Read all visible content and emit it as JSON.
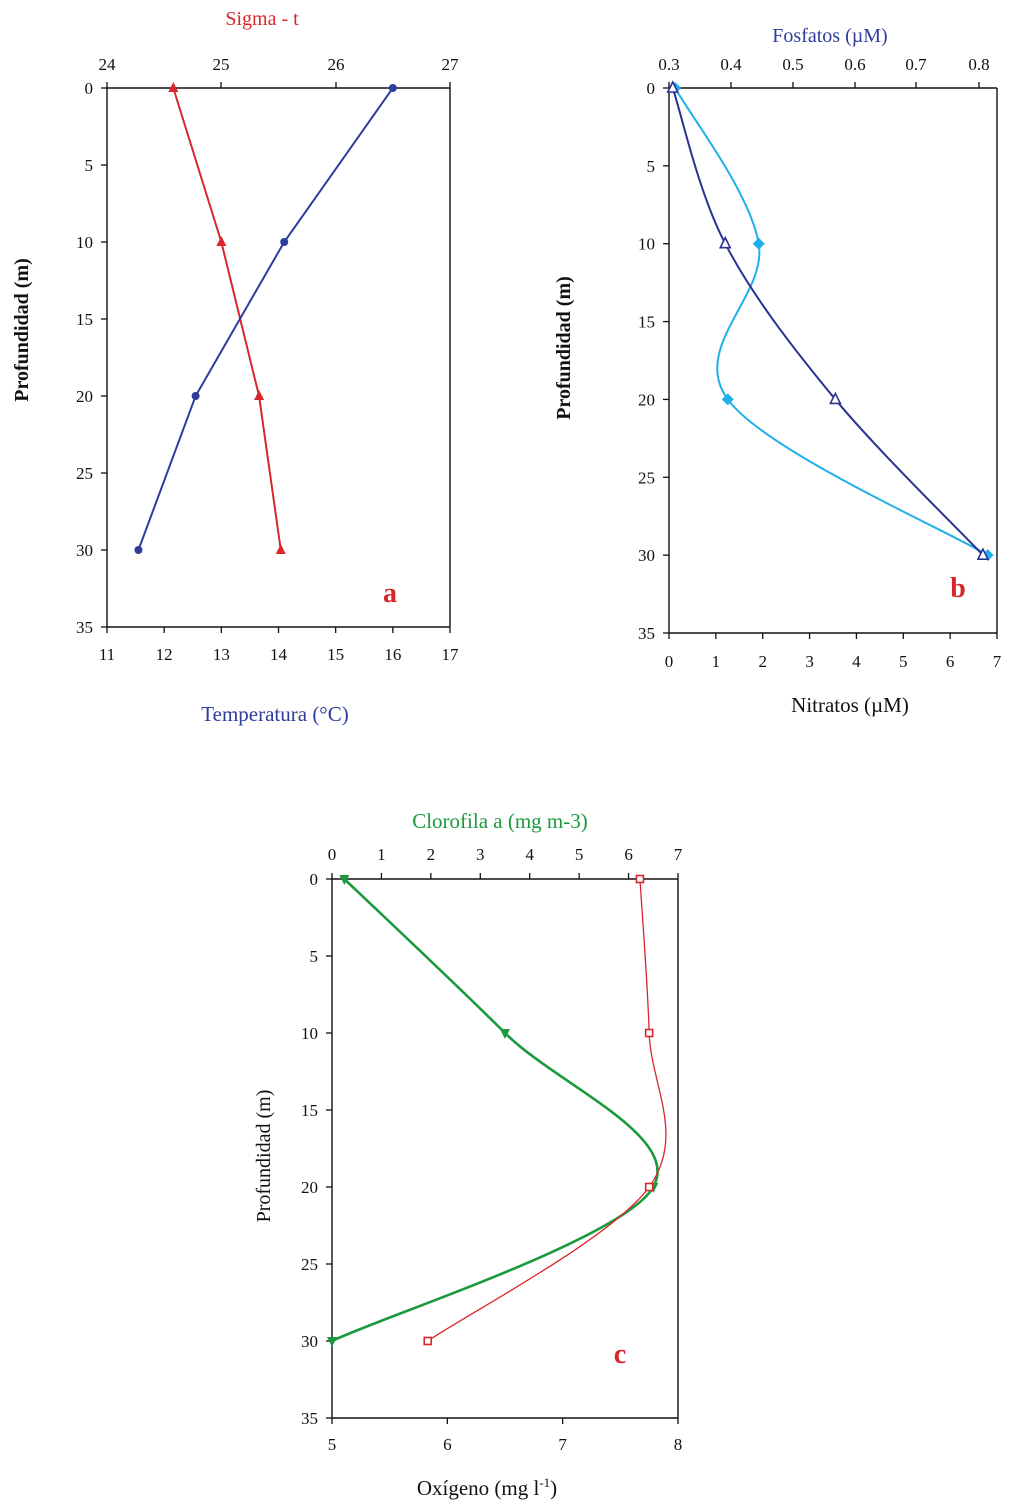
{
  "colors": {
    "red": "#d9262c",
    "blue": "#2e3c9e",
    "navy": "#2b3390",
    "cyan": "#1fb0ea",
    "green": "#1a9a3c",
    "axis": "#111111"
  },
  "chart_data": [
    {
      "type": "line",
      "panel_letter": "a",
      "y_axis": {
        "label": "Profundidad (m)",
        "range": [
          0,
          35
        ],
        "ticks": [
          "0",
          "5",
          "10",
          "15",
          "20",
          "25",
          "30",
          "35"
        ],
        "inverted": true
      },
      "top_axis": {
        "label": "Sigma - t",
        "range": [
          24,
          27
        ],
        "ticks": [
          "24",
          "25",
          "26",
          "27"
        ]
      },
      "bottom_axis": {
        "label": "Temperatura (°C)",
        "range": [
          11,
          17
        ],
        "ticks": [
          "11",
          "12",
          "13",
          "14",
          "15",
          "16",
          "17"
        ]
      },
      "series": [
        {
          "axis": "top",
          "color": "#d9262c",
          "marker": "triangle",
          "depth": [
            0,
            10,
            20,
            30
          ],
          "values": [
            24.58,
            25.0,
            25.33,
            25.52
          ]
        },
        {
          "axis": "bottom",
          "color": "#2e3c9e",
          "marker": "circle",
          "depth": [
            0,
            10,
            20,
            30
          ],
          "values": [
            16.0,
            14.1,
            12.55,
            11.55
          ]
        }
      ]
    },
    {
      "type": "line",
      "panel_letter": "b",
      "y_axis": {
        "label": "Profundidad (m)",
        "range": [
          0,
          35
        ],
        "ticks": [
          "0",
          "5",
          "10",
          "15",
          "20",
          "25",
          "30",
          "35"
        ],
        "inverted": true
      },
      "top_axis": {
        "label": "Fosfatos (µM)",
        "range": [
          0.3,
          0.83
        ],
        "ticks": [
          "0.3",
          "0.4",
          "0.5",
          "0.6",
          "0.7",
          "0.8"
        ]
      },
      "bottom_axis": {
        "label": "Nitratos (µM)",
        "range": [
          0,
          7
        ],
        "ticks": [
          "0",
          "1",
          "2",
          "3",
          "4",
          "5",
          "6",
          "7"
        ]
      },
      "series": [
        {
          "axis": "top",
          "color": "#1fb0ea",
          "marker": "diamond",
          "depth": [
            0,
            10,
            20,
            30
          ],
          "values": [
            0.31,
            0.445,
            0.395,
            0.815
          ]
        },
        {
          "axis": "bottom",
          "color": "#2b3390",
          "marker": "open-triangle",
          "depth": [
            0,
            10,
            20,
            30
          ],
          "values": [
            0.08,
            1.2,
            3.55,
            6.7
          ]
        }
      ]
    },
    {
      "type": "line",
      "panel_letter": "c",
      "y_axis": {
        "label": "Profundidad (m)",
        "range": [
          0,
          35
        ],
        "ticks": [
          "0",
          "5",
          "10",
          "15",
          "20",
          "25",
          "30",
          "35"
        ],
        "inverted": true
      },
      "top_axis": {
        "label": "Clorofila a (mg m-3)",
        "range": [
          0,
          7
        ],
        "ticks": [
          "0",
          "1",
          "2",
          "3",
          "4",
          "5",
          "6",
          "7"
        ]
      },
      "bottom_axis": {
        "label": "Oxígeno (mg l-1)",
        "range": [
          5,
          8
        ],
        "ticks": [
          "5",
          "6",
          "7",
          "8"
        ]
      },
      "series": [
        {
          "axis": "top",
          "color": "#1a9a3c",
          "marker": "down-triangle",
          "depth": [
            0,
            10,
            20,
            30
          ],
          "values": [
            0.25,
            3.5,
            6.5,
            0.0
          ]
        },
        {
          "axis": "bottom",
          "color": "#d9262c",
          "marker": "open-square",
          "depth": [
            0,
            10,
            20,
            30
          ],
          "values": [
            7.67,
            7.75,
            7.75,
            5.83
          ]
        }
      ]
    }
  ]
}
